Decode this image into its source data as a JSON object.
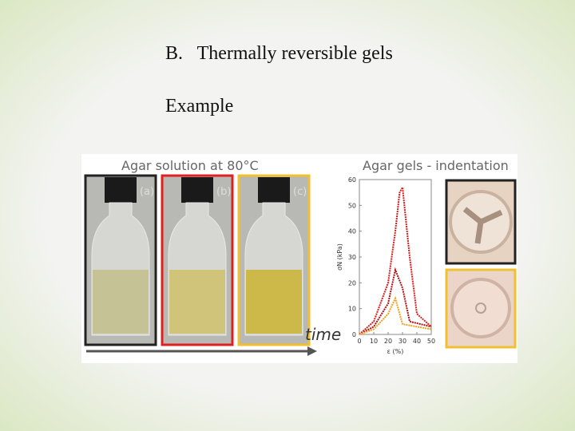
{
  "slide": {
    "heading": "B.   Thermally reversible gels",
    "subheading": "Example"
  },
  "figure": {
    "left_title": "Agar solution at 80°C",
    "panels": [
      "(a)",
      "(b)",
      "(c)"
    ],
    "arrow_label": "time",
    "right_title": "Agar gels - indentation",
    "plot": {
      "ylabel": "σN (kPa)",
      "xlabel": "ε (%)",
      "xlim": [
        0,
        50
      ],
      "ylim": [
        0,
        60
      ],
      "xticks": [
        0,
        10,
        20,
        30,
        40,
        50
      ],
      "yticks": [
        0,
        10,
        20,
        30,
        40,
        50,
        60
      ],
      "series": [
        {
          "color": "#d81c1c",
          "x": [
            0,
            10,
            20,
            25,
            28,
            30,
            35,
            40,
            50
          ],
          "values": [
            0,
            5,
            20,
            40,
            55,
            57,
            30,
            8,
            3
          ]
        },
        {
          "color": "#b01010",
          "x": [
            0,
            10,
            20,
            25,
            30,
            35,
            50
          ],
          "values": [
            0,
            3,
            12,
            25,
            18,
            5,
            3
          ]
        },
        {
          "color": "#f0a020",
          "x": [
            0,
            10,
            20,
            25,
            30,
            50
          ],
          "values": [
            0,
            2,
            8,
            14,
            4,
            2
          ]
        }
      ]
    }
  }
}
